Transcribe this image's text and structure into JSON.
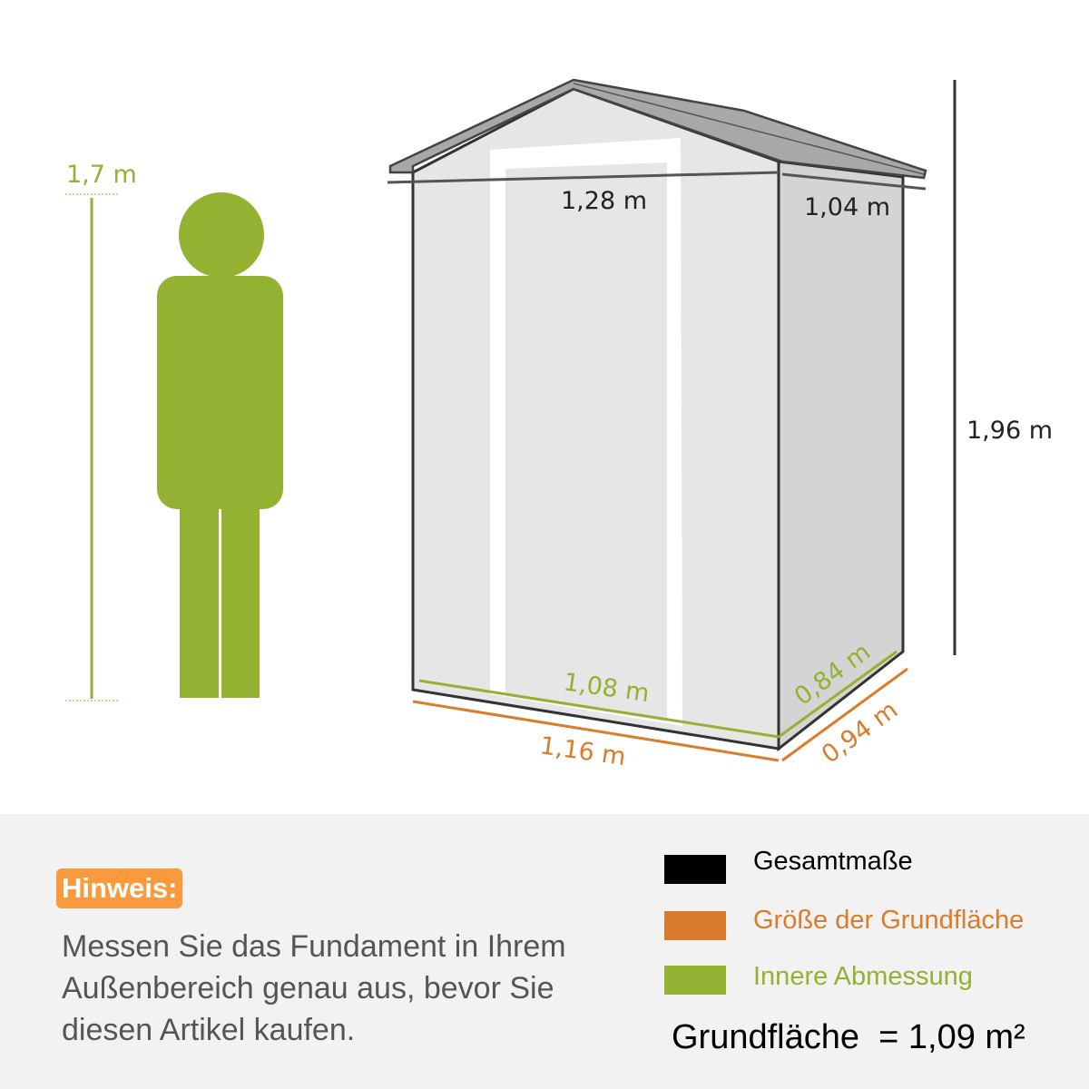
{
  "person": {
    "height_label": "1,7 m"
  },
  "shed": {
    "overall_width_label": "1,28 m",
    "overall_depth_label": "1,04 m",
    "height_label": "1,96 m",
    "inner_width_label": "1,08 m",
    "inner_depth_label": "0,84 m",
    "base_width_label": "1,16 m",
    "base_depth_label": "0,94 m"
  },
  "note": {
    "badge": "Hinweis:",
    "text": "Messen Sie das Fundament in Ihrem Außenbereich genau aus, bevor Sie diesen Artikel kaufen."
  },
  "legend": {
    "items": [
      {
        "label": "Gesamtmaße",
        "color": "#000000"
      },
      {
        "label": "Größe der Grundfläche",
        "color": "#d97c2b"
      },
      {
        "label": "Innere Abmessung",
        "color": "#93b232"
      }
    ],
    "area": "Grundfläche  = 1,09 m²"
  },
  "colors": {
    "green": "#93b232",
    "orange": "#d97c2b",
    "black": "#222222",
    "badge": "#fb9a3c",
    "panel": "#f2f2f2"
  }
}
